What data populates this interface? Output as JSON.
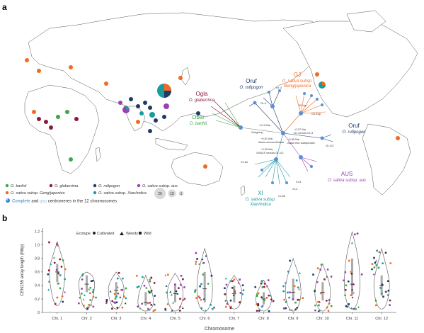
{
  "panel_a": {
    "letter": "a",
    "map_labels": {
      "ogla_title": "Ogla",
      "ogla_species": "O. glaberrima",
      "obar_title": "Obar",
      "obar_species": "O. barthii",
      "oruf_left_title": "Oruf",
      "oruf_left_species": "O. rufipogon",
      "gj_title": "GJ",
      "gj_species_1": "O. sativa subsp.",
      "gj_species_2": "Geng/japonica",
      "oruf_right_title": "Oruf",
      "oruf_right_species": "O. rufipogon",
      "xi_title": "XI",
      "xi_species_1": "O. sativa subsp.",
      "xi_species_2": "Xian/indica",
      "aus_title": "AUS",
      "aus_species": "O. sativa subsp. aus"
    },
    "tree_labels": {
      "or4": "Or-4",
      "or3": "Or-3",
      "gj_trp": "GJ-trp",
      "gj_tmp": "GJ-tmp",
      "ma019": "~0.19 Ma",
      "outgroup": "Outgroup",
      "ma081": "~0.81 Ma",
      "asian_vs_african": "Asian versus African",
      "ma027": "~0.27 Ma",
      "gj_vs_or3": "GJ versus Or-3",
      "ma055": "~0.55 Ma",
      "asian_rice_subspecies": "Asian rice subspecies",
      "ma039": "~0.39 Ma",
      "xi_aus_vs_or12": "XI/AUS versus Or-1/2",
      "or12": "Or-1/2",
      "xi1a": "XI-1A",
      "xi2": "XI-2",
      "xi3": "XI-3",
      "xi1b": "XI-1B"
    },
    "legend": {
      "items": [
        {
          "label": "O. barthii",
          "color": "#3aa845"
        },
        {
          "label": "O. glaberrima",
          "color": "#8b1a3a"
        },
        {
          "label": "O. rufipogon",
          "color": "#1f3a66"
        },
        {
          "label": "O. sativa subsp. aus",
          "color": "#9c3fb0"
        },
        {
          "label": "O. sativa subsp. Geng/japonica",
          "color": "#f26a21"
        },
        {
          "label": "O. sativa subsp. Xian/indica",
          "color": "#1b9aa0"
        }
      ],
      "size_values": [
        "20",
        "10",
        "1"
      ],
      "note_word1": "Complete",
      "note_and": " and ",
      "note_word2": "gap",
      "note_rest": " centromeres in the 12 chromosomes",
      "note_color1": "#2f87c8",
      "note_color2": "#9ec9e8"
    }
  },
  "panel_b": {
    "letter": "b",
    "ylabel": "CEN155 array length (Mbp)",
    "xlabel": "Chromosome",
    "ecotype_label": "Ecotype",
    "ecotype_items": [
      "Cultivated",
      "Weedy",
      "Wild"
    ],
    "ytick_labels": [
      "0",
      "0.2",
      "0.4",
      "0.6",
      "0.8",
      "1.0",
      "1.2"
    ]
  },
  "chart_data": {
    "type": "violin",
    "xlabel": "Chromosome",
    "ylabel": "CEN155 array length (Mbp)",
    "ylim": [
      0,
      1.25
    ],
    "categories": [
      "Chr. 1",
      "Chr. 2",
      "Chr. 3",
      "Chr. 4",
      "Chr. 5",
      "Chr. 6",
      "Chr. 7",
      "Chr. 8",
      "Chr. 9",
      "Chr. 10",
      "Chr. 11",
      "Chr. 12"
    ],
    "medians": [
      0.6,
      0.42,
      0.33,
      0.15,
      0.28,
      0.35,
      0.28,
      0.2,
      0.3,
      0.3,
      0.42,
      0.4
    ],
    "q1": [
      0.45,
      0.3,
      0.22,
      0.1,
      0.15,
      0.15,
      0.15,
      0.12,
      0.18,
      0.18,
      0.25,
      0.25
    ],
    "q3": [
      0.72,
      0.55,
      0.45,
      0.3,
      0.42,
      0.6,
      0.4,
      0.3,
      0.5,
      0.45,
      0.8,
      0.55
    ],
    "max": [
      1.05,
      0.6,
      0.6,
      0.55,
      0.58,
      0.95,
      0.55,
      0.48,
      0.8,
      0.72,
      1.2,
      0.95
    ],
    "min": [
      0.1,
      0.05,
      0.05,
      0.02,
      0.02,
      0.02,
      0.05,
      0.02,
      0.02,
      0.02,
      0.05,
      0.05
    ]
  }
}
